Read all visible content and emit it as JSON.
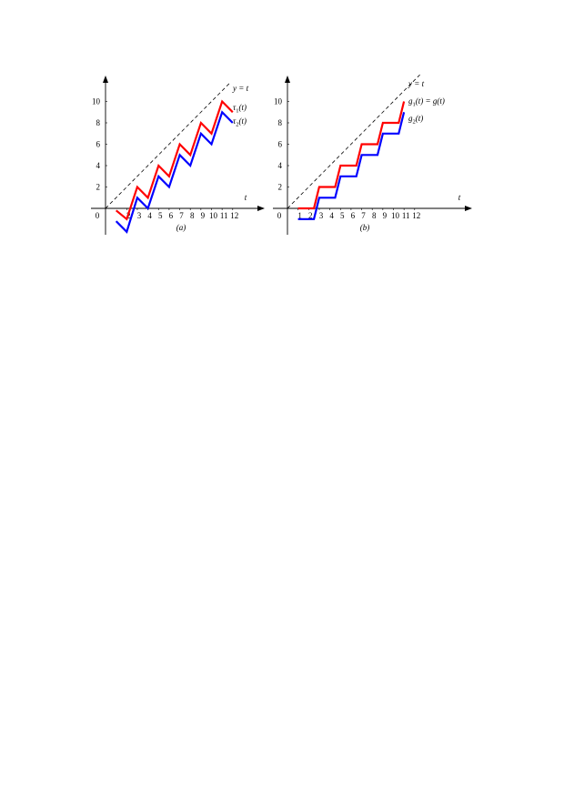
{
  "chart_data": [
    {
      "type": "line",
      "panel_label": "(a)",
      "origin_label": "0",
      "x_axis_label": "t",
      "x_ticks": [
        "2",
        "3",
        "4",
        "5",
        "6",
        "7",
        "8",
        "9",
        "10",
        "11",
        "12"
      ],
      "y_ticks": [
        "2",
        "4",
        "6",
        "8",
        "10"
      ],
      "xlim": [
        0,
        12.5
      ],
      "ylim": [
        -2.3,
        11.5
      ],
      "grid": false,
      "series": [
        {
          "name": "y = t",
          "style": "dashed",
          "color": "#000000",
          "x": [
            0,
            11.8
          ],
          "y": [
            0,
            11.8
          ]
        },
        {
          "name": "τ1(t)",
          "color": "#ff0000",
          "x": [
            1,
            2,
            3,
            4,
            5,
            6,
            7,
            8,
            9,
            10,
            11,
            12
          ],
          "y": [
            -0.2,
            -1,
            2,
            1,
            4,
            3,
            6,
            5,
            8,
            7,
            10,
            9
          ]
        },
        {
          "name": "τ2(t)",
          "color": "#0000ff",
          "x": [
            1,
            2,
            3,
            4,
            5,
            6,
            7,
            8,
            9,
            10,
            11,
            12
          ],
          "y": [
            -1.2,
            -2.2,
            1,
            0,
            3,
            2,
            5,
            4,
            7,
            6,
            9,
            8
          ]
        }
      ],
      "legend": [
        {
          "text": "y = t"
        },
        {
          "text": "τ",
          "sub": "1",
          "tail": "(t)"
        },
        {
          "text": "τ",
          "sub": "2",
          "tail": "(t)"
        }
      ]
    },
    {
      "type": "line",
      "panel_label": "(b)",
      "origin_label": "0",
      "x_axis_label": "t",
      "x_ticks": [
        "1",
        "2",
        "3",
        "4",
        "5",
        "6",
        "7",
        "8",
        "9",
        "10",
        "11",
        "12"
      ],
      "y_ticks": [
        "2",
        "4",
        "6",
        "8",
        "10"
      ],
      "xlim": [
        0,
        17.5
      ],
      "ylim": [
        -2.3,
        11.5
      ],
      "grid": false,
      "series": [
        {
          "name": "y = t",
          "style": "dashed",
          "color": "#000000",
          "x": [
            0,
            12.5
          ],
          "y": [
            0,
            12.5
          ]
        },
        {
          "name": "g1(t) = g(t)",
          "color": "#ff0000",
          "x": [
            1,
            2,
            2.5,
            3,
            3.5,
            4,
            4.5,
            5,
            5.5,
            6,
            6.5,
            7,
            7.5,
            8,
            8.5,
            9,
            9.5,
            10,
            10.5,
            11
          ],
          "y": [
            0,
            0,
            0,
            2,
            2,
            2,
            2,
            4,
            4,
            4,
            4,
            6,
            6,
            6,
            6,
            8,
            8,
            8,
            8,
            10
          ]
        },
        {
          "name": "g2(t)",
          "color": "#0000ff",
          "x": [
            1,
            2,
            2.5,
            3,
            3.5,
            4,
            4.5,
            5,
            5.5,
            6,
            6.5,
            7,
            7.5,
            8,
            8.5,
            9,
            9.5,
            10,
            10.5,
            11
          ],
          "y": [
            -1,
            -1,
            -1,
            1,
            1,
            1,
            1,
            3,
            3,
            3,
            3,
            5,
            5,
            5,
            5,
            7,
            7,
            7,
            7,
            9
          ]
        }
      ],
      "legend": [
        {
          "text": "y = t"
        },
        {
          "text": "g",
          "sub": "1",
          "tail": "(t) = g(t)"
        },
        {
          "text": "g",
          "sub": "2",
          "tail": "(t)"
        }
      ]
    }
  ]
}
